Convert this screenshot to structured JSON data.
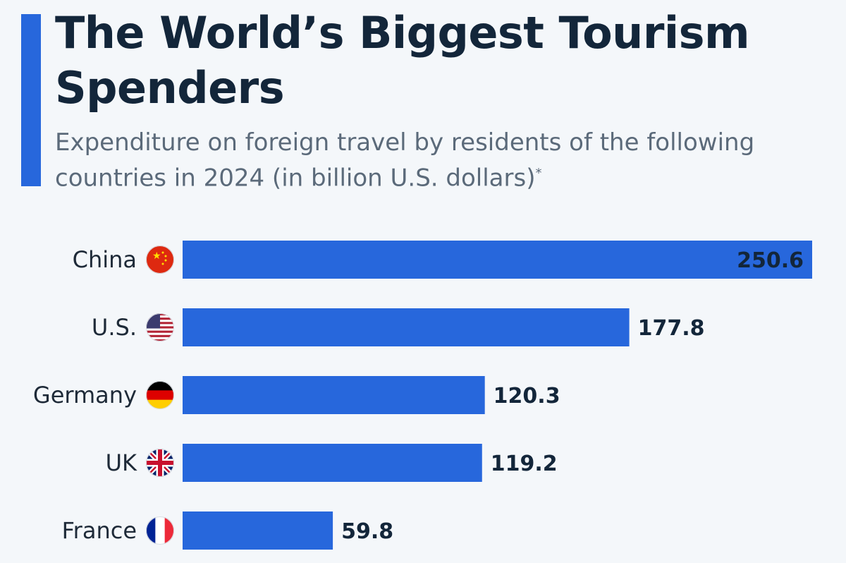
{
  "colors": {
    "bar": "#2767dc",
    "accent": "#2767dc",
    "text": "#13263a"
  },
  "chart_data": {
    "type": "bar",
    "orientation": "horizontal",
    "title": "The World’s Biggest Tourism Spenders",
    "subtitle": "Expenditure on foreign travel by residents of the following countries in 2024 (in billion U.S. dollars)",
    "subtitle_mark": "*",
    "categories": [
      "China",
      "U.S.",
      "Germany",
      "UK",
      "France"
    ],
    "flag_icons": [
      "china-flag-icon",
      "us-flag-icon",
      "germany-flag-icon",
      "uk-flag-icon",
      "france-flag-icon"
    ],
    "values": [
      250.6,
      177.8,
      120.3,
      119.2,
      59.8
    ],
    "value_labels": [
      "250.6",
      "177.8",
      "120.3",
      "119.2",
      "59.8"
    ],
    "xlim": [
      0,
      250.6
    ],
    "grid": false,
    "legend": "none"
  }
}
